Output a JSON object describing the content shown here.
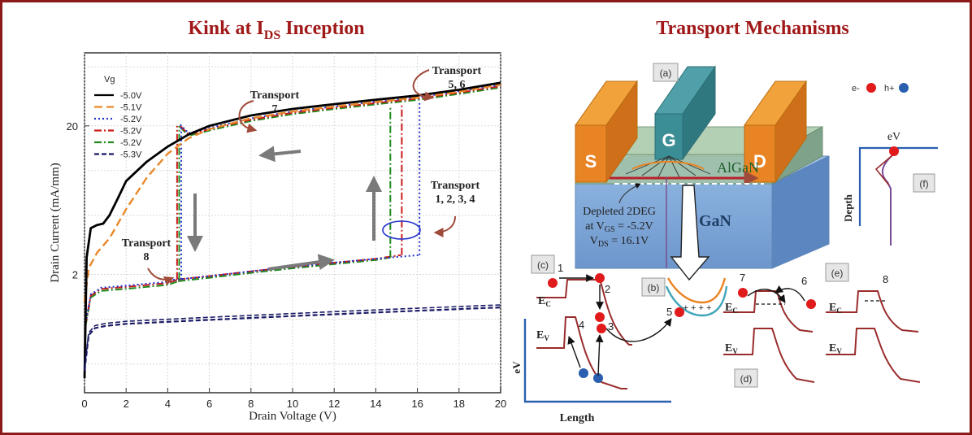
{
  "left_title": {
    "main": "Kink at I",
    "sub": "DS",
    "tail": " Inception"
  },
  "right_title": "Transport Mechanisms",
  "chart_data": {
    "type": "line",
    "xlabel": "Drain Voltage (V)",
    "ylabel": "Drain Current (mA/mm)",
    "xlim": [
      0,
      20
    ],
    "x_ticks": [
      "0",
      "2",
      "4",
      "6",
      "8",
      "10",
      "12",
      "14",
      "16",
      "18",
      "20"
    ],
    "y_ticks": [
      "2",
      "20"
    ],
    "legend_title": "Vg",
    "legend_position": "top-left",
    "grid": true,
    "series": [
      {
        "name": "-5.0V",
        "color": "#000000",
        "dash": "solid"
      },
      {
        "name": "-5.1V",
        "color": "#e8892b",
        "dash": "longdash"
      },
      {
        "name": "-5.2V",
        "color": "#2233cc",
        "dash": "dot"
      },
      {
        "name": "-5.2V",
        "color": "#cc1c1c",
        "dash": "dashdot"
      },
      {
        "name": "-5.2V",
        "color": "#1f8a1f",
        "dash": "dashdot"
      },
      {
        "name": "-5.3V",
        "color": "#1a1a66",
        "dash": "dash"
      }
    ],
    "curves": {
      "black": {
        "x": [
          0,
          0.1,
          0.3,
          0.6,
          0.9,
          1.2,
          1.6,
          2,
          3,
          4,
          5,
          6,
          8,
          10,
          12,
          14,
          16,
          18,
          20
        ],
        "y": [
          0.4,
          2.6,
          4.1,
          4.3,
          4.4,
          5.0,
          6.5,
          8.5,
          11.5,
          14.5,
          17.5,
          20,
          23.5,
          26,
          28,
          30,
          32,
          35,
          39
        ]
      },
      "orange": {
        "x": [
          0,
          0.2,
          0.6,
          1.2,
          2,
          3,
          4,
          5,
          6,
          8,
          10,
          12,
          14,
          16,
          18,
          20
        ],
        "y": [
          1.3,
          2.2,
          2.8,
          3.5,
          5.5,
          9,
          13,
          16.5,
          19,
          22.5,
          25,
          27,
          29,
          31,
          34,
          38
        ]
      },
      "upper_hyst": {
        "x": [
          4.6,
          5,
          6,
          8,
          10,
          12,
          14,
          16,
          18,
          20
        ],
        "y": [
          20,
          17.5,
          19,
          22,
          24.5,
          26.5,
          28.5,
          30.5,
          33.5,
          37
        ]
      },
      "low_common": {
        "x": [
          0.05,
          0.3,
          0.8,
          2,
          3,
          4,
          4.5
        ],
        "y": [
          0.9,
          1.4,
          1.55,
          1.6,
          1.65,
          1.7,
          1.8
        ]
      },
      "low_red": {
        "x": [
          4.5,
          6,
          8,
          10,
          12,
          14,
          15.2
        ],
        "y": [
          1.85,
          1.95,
          2.1,
          2.25,
          2.4,
          2.55,
          2.7
        ]
      },
      "low_green": {
        "x": [
          4.5,
          6,
          8,
          10,
          12,
          14,
          14.7
        ],
        "y": [
          1.8,
          1.9,
          2.05,
          2.2,
          2.35,
          2.5,
          2.6
        ]
      },
      "low_blue": {
        "x": [
          4.5,
          6,
          8,
          10,
          12,
          14,
          16.1
        ],
        "y": [
          1.85,
          1.95,
          2.1,
          2.25,
          2.4,
          2.55,
          2.7
        ]
      },
      "vert": [
        {
          "color": "#cc1c1c",
          "x": 4.45,
          "y": [
            1.85,
            20
          ]
        },
        {
          "color": "#1f8a1f",
          "x": 4.55,
          "y": [
            1.85,
            20
          ]
        },
        {
          "color": "#2233cc",
          "x": 4.65,
          "y": [
            1.85,
            20
          ]
        },
        {
          "color": "#1f8a1f",
          "x": 14.7,
          "y": [
            2.6,
            27
          ]
        },
        {
          "color": "#cc1c1c",
          "x": 15.25,
          "y": [
            2.7,
            28
          ]
        },
        {
          "color": "#2233cc",
          "x": 16.1,
          "y": [
            2.7,
            28.5
          ]
        }
      ],
      "bottom": {
        "x": [
          0,
          0.2,
          0.5,
          1,
          2,
          4,
          6,
          8,
          10,
          12,
          14,
          16,
          18,
          20
        ],
        "y": [
          0.45,
          0.78,
          0.87,
          0.9,
          0.93,
          0.96,
          0.99,
          1.02,
          1.05,
          1.08,
          1.11,
          1.14,
          1.17,
          1.2
        ]
      }
    },
    "annotations": [
      {
        "id": "t7",
        "lines": [
          "Transport",
          "7"
        ]
      },
      {
        "id": "t56",
        "lines": [
          "Transport",
          "5, 6"
        ]
      },
      {
        "id": "t1234",
        "lines": [
          "Transport",
          "1, 2, 3, 4"
        ]
      },
      {
        "id": "t8",
        "lines": [
          "Transport",
          "8"
        ]
      }
    ]
  },
  "device": {
    "panel_a": "(a)",
    "gate": "G",
    "source": "S",
    "drain": "D",
    "algan": "AlGaN",
    "gan": "GaN",
    "depleted": [
      "Depleted 2DEG",
      "at V",
      "GS",
      " = -5.2V",
      "V",
      "DS",
      " = 16.1V"
    ]
  },
  "legend_particles": {
    "electron": "e-",
    "hole": "h+"
  },
  "panel_f": {
    "label": "(f)",
    "eV": "eV",
    "axis": "Depth"
  },
  "panel_b": {
    "label": "(b)",
    "plus": "+ + + +",
    "num5": "5"
  },
  "panel_c": {
    "label": "(c)",
    "nums": [
      "1",
      "2",
      "3",
      "4"
    ],
    "ec": "E",
    "ec_sub": "C",
    "ev": "E",
    "ev_sub": "V",
    "yaxis": "eV",
    "xaxis": "Length"
  },
  "panel_d": {
    "label": "(d)",
    "nums": [
      "7",
      "6"
    ],
    "ec": "E",
    "ec_sub": "C",
    "ev": "E",
    "ev_sub": "V"
  },
  "panel_e": {
    "label": "(e)",
    "num": "8",
    "ec": "E",
    "ec_sub": "C",
    "ev": "E",
    "ev_sub": "V"
  },
  "colors": {
    "title": "#a01818",
    "electron": "#e11b1b",
    "hole": "#2a5fb0",
    "band": "#9a2c2c",
    "frame": "#8b1a1a"
  }
}
